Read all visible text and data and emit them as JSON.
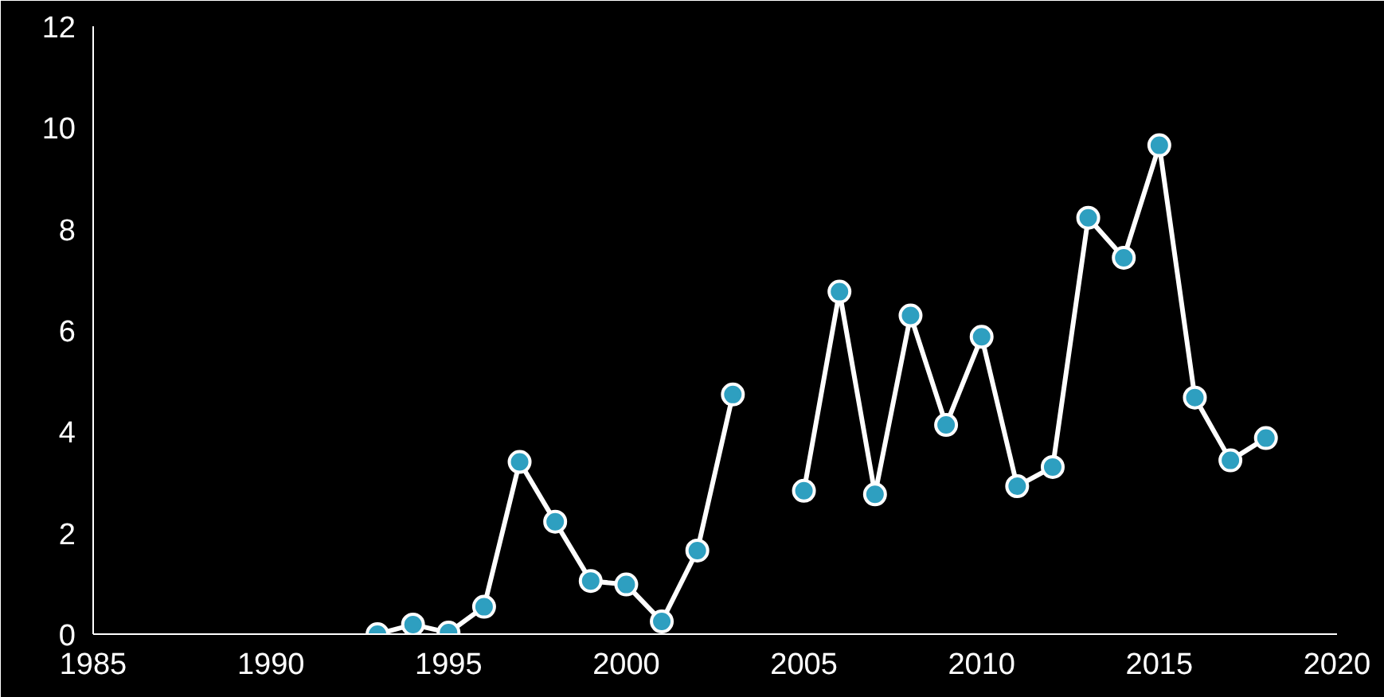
{
  "chart_data": {
    "type": "line",
    "x": [
      1993,
      1994,
      1995,
      1996,
      1997,
      1998,
      1999,
      2000,
      2001,
      2002,
      2003,
      2004,
      2005,
      2006,
      2007,
      2008,
      2009,
      2010,
      2011,
      2012,
      2013,
      2014,
      2015,
      2016,
      2017,
      2018
    ],
    "series": [
      {
        "color": "#2e9fc0",
        "values": [
          0,
          0.19,
          0.03,
          0.54,
          3.4,
          2.22,
          1.05,
          0.98,
          0.25,
          1.65,
          4.73,
          null,
          2.83,
          6.76,
          2.76,
          6.29,
          4.13,
          5.87,
          2.92,
          3.3,
          8.22,
          7.43,
          9.65,
          4.67,
          3.43,
          3.87
        ]
      }
    ],
    "xlim": [
      1985,
      2020
    ],
    "xticks": [
      1985,
      1990,
      1995,
      2000,
      2005,
      2010,
      2015,
      2020
    ],
    "ylim": [
      0,
      12
    ],
    "yticks": [
      0,
      2,
      4,
      6,
      8,
      10,
      12
    ],
    "grid": false,
    "marker": "circle",
    "line_style": "solid"
  }
}
